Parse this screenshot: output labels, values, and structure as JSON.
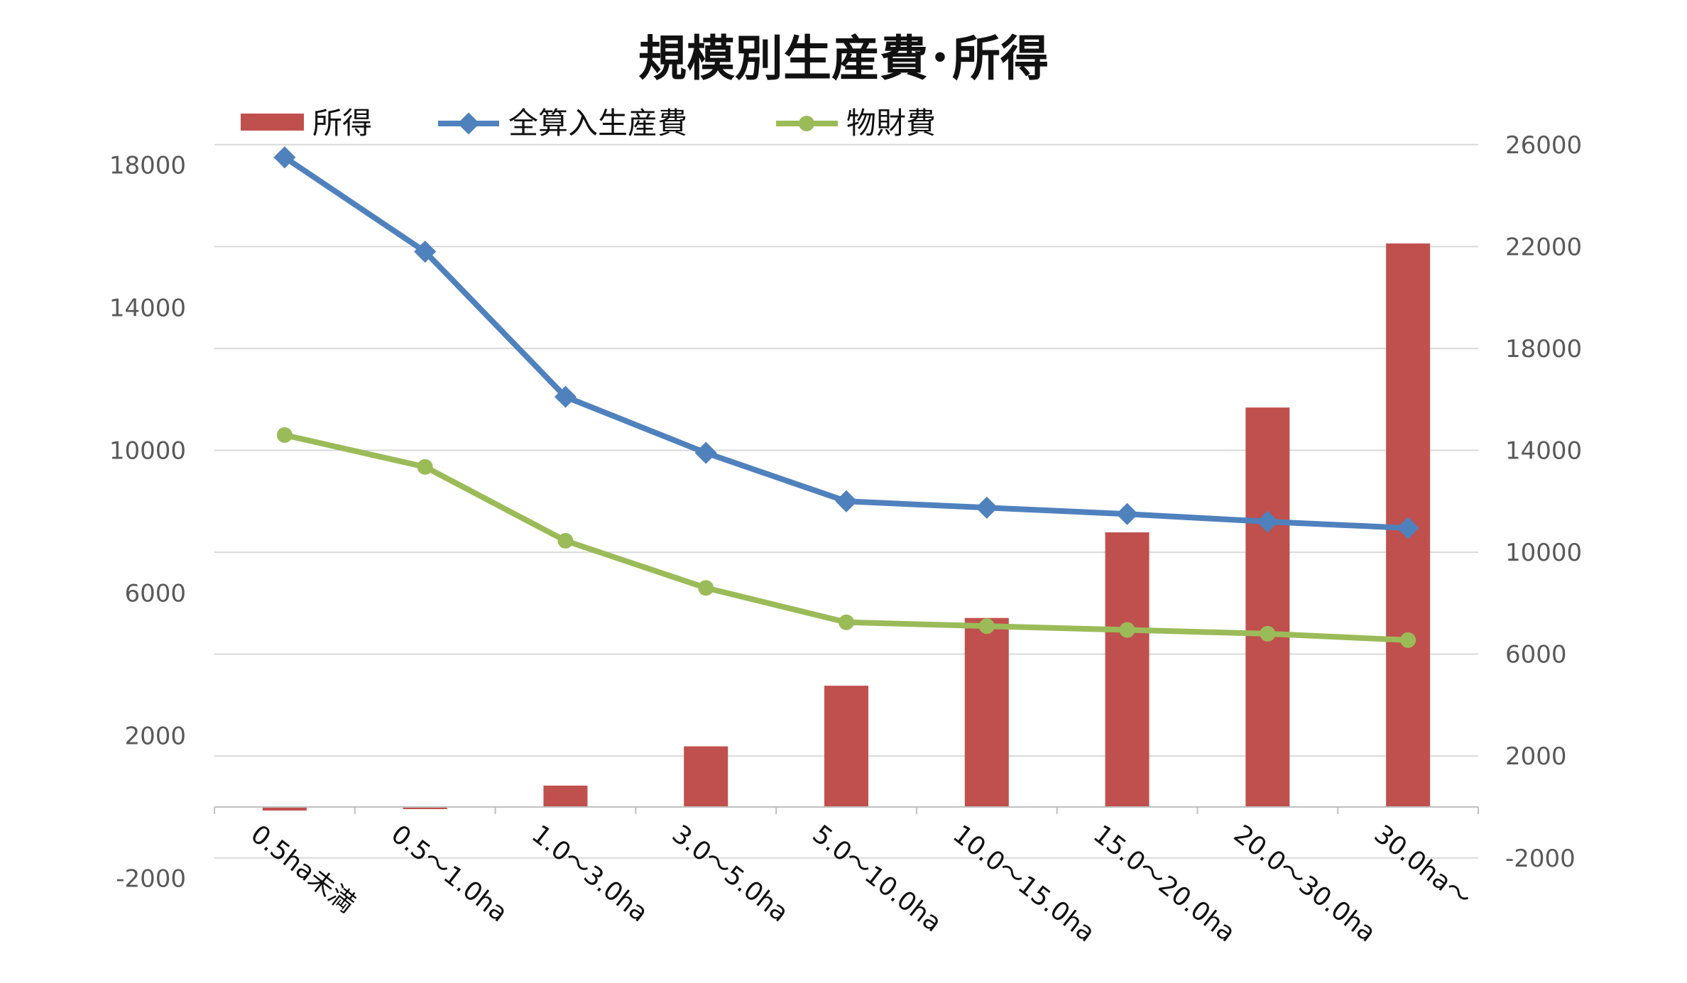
{
  "chart_data": {
    "type": "bar",
    "title": "規模別生産費･所得",
    "categories": [
      "0.5ha未満",
      "0.5～1.0ha",
      "1.0～3.0ha",
      "3.0～5.0ha",
      "5.0～10.0ha",
      "10.0～15.0ha",
      "15.0～20.0ha",
      "20.0～30.0ha",
      "30.0ha～"
    ],
    "series": [
      {
        "name": "所得",
        "type": "bar",
        "axis": "left",
        "color": "#C0504D",
        "values": [
          -100,
          -60,
          600,
          1700,
          3400,
          5300,
          7700,
          11200,
          15800
        ]
      },
      {
        "name": "全算入生産費",
        "type": "line",
        "axis": "right",
        "color": "#4F81BD",
        "marker": "diamond",
        "values": [
          25500,
          21800,
          16100,
          13900,
          12000,
          11750,
          11500,
          11200,
          10950
        ]
      },
      {
        "name": "物財費",
        "type": "line",
        "axis": "right",
        "color": "#9BBB59",
        "marker": "circle",
        "values": [
          14600,
          13350,
          10450,
          8600,
          7250,
          7100,
          6950,
          6800,
          6550
        ]
      }
    ],
    "y_left": {
      "ticks": [
        "-2000",
        "2000",
        "6000",
        "10000",
        "14000",
        "18000"
      ],
      "range": [
        -2000,
        18000
      ]
    },
    "y_right": {
      "ticks": [
        "-2000",
        "2000",
        "6000",
        "10000",
        "14000",
        "18000",
        "22000",
        "26000"
      ],
      "range": [
        -2000,
        26000
      ]
    },
    "grid": true,
    "legend": "top-left"
  }
}
